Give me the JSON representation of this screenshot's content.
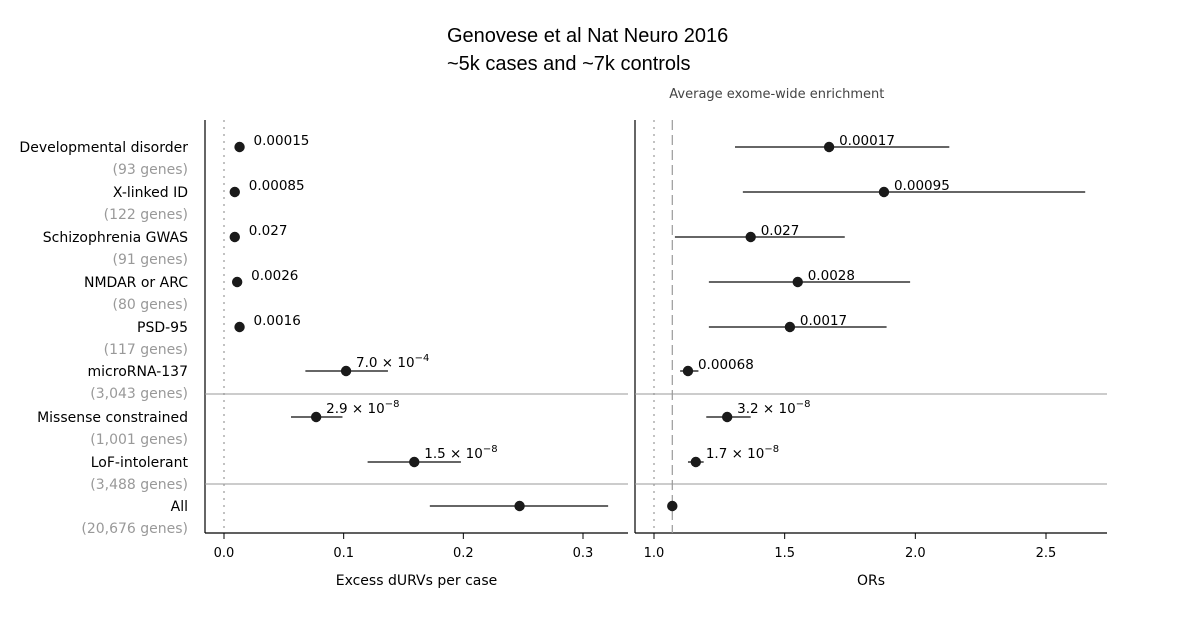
{
  "heading": {
    "line1": "Genovese et al Nat Neuro 2016",
    "line2": "~5k cases and ~7k controls"
  },
  "rows": [
    {
      "name": "Developmental disorder",
      "genes": "(93 genes)"
    },
    {
      "name": "X-linked ID",
      "genes": "(122 genes)"
    },
    {
      "name": "Schizophrenia GWAS",
      "genes": "(91 genes)"
    },
    {
      "name": "NMDAR or ARC",
      "genes": "(80 genes)"
    },
    {
      "name": "PSD-95",
      "genes": "(117 genes)"
    },
    {
      "name": "microRNA-137",
      "genes": "(3,043 genes)"
    },
    {
      "name": "Missense constrained",
      "genes": "(1,001 genes)"
    },
    {
      "name": "LoF-intolerant",
      "genes": "(3,488 genes)"
    },
    {
      "name": "All",
      "genes": "(20,676 genes)"
    }
  ],
  "colors": {
    "point": "#1a1a1a",
    "line": "#333333",
    "label": "#000000",
    "genes": "#999999",
    "guide": "#999999"
  },
  "chart_data": [
    {
      "type": "scatter",
      "xlabel": "Excess dURVs per case",
      "xlim": [
        -0.017,
        0.345
      ],
      "xticks": [
        0.0,
        0.1,
        0.2,
        0.3
      ],
      "xtick_labels": [
        "0.0",
        "0.1",
        "0.2",
        "0.3"
      ],
      "reference_line": 0.0,
      "points": [
        {
          "x": 0.013,
          "p": "0.00015"
        },
        {
          "x": 0.009,
          "p": "0.00085"
        },
        {
          "x": 0.009,
          "p": "0.027"
        },
        {
          "x": 0.011,
          "p": "0.0026"
        },
        {
          "x": 0.013,
          "p": "0.0016"
        },
        {
          "x": 0.102,
          "lo": 0.068,
          "hi": 0.137,
          "p_base": "7.0 × 10",
          "p_exp": "−4"
        },
        {
          "x": 0.077,
          "lo": 0.056,
          "hi": 0.099,
          "p_base": "2.9 × 10",
          "p_exp": "−8"
        },
        {
          "x": 0.159,
          "lo": 0.12,
          "hi": 0.198,
          "p_base": "1.5 × 10",
          "p_exp": "−8"
        },
        {
          "x": 0.247,
          "lo": 0.172,
          "hi": 0.321
        }
      ]
    },
    {
      "type": "scatter",
      "xlabel": "ORs",
      "xlim": [
        0.92,
        2.75
      ],
      "xticks": [
        1.0,
        1.5,
        2.0,
        2.5
      ],
      "xtick_labels": [
        "1.0",
        "1.5",
        "2.0",
        "2.5"
      ],
      "reference_line": 1.0,
      "enrichment_line": 1.07,
      "enrichment_label": "Average exome-wide enrichment",
      "points": [
        {
          "x": 1.67,
          "lo": 1.31,
          "hi": 2.13,
          "p": "0.00017"
        },
        {
          "x": 1.88,
          "lo": 1.34,
          "hi": 2.65,
          "p": "0.00095"
        },
        {
          "x": 1.37,
          "lo": 1.08,
          "hi": 1.73,
          "p": "0.027"
        },
        {
          "x": 1.55,
          "lo": 1.21,
          "hi": 1.98,
          "p": "0.0028"
        },
        {
          "x": 1.52,
          "lo": 1.21,
          "hi": 1.89,
          "p": "0.0017"
        },
        {
          "x": 1.13,
          "lo": 1.1,
          "hi": 1.17,
          "p": "0.00068"
        },
        {
          "x": 1.28,
          "lo": 1.2,
          "hi": 1.37,
          "p_base": "3.2 × 10",
          "p_exp": "−8"
        },
        {
          "x": 1.16,
          "lo": 1.13,
          "hi": 1.19,
          "p_base": "1.7 × 10",
          "p_exp": "−8"
        },
        {
          "x": 1.07
        }
      ]
    }
  ]
}
